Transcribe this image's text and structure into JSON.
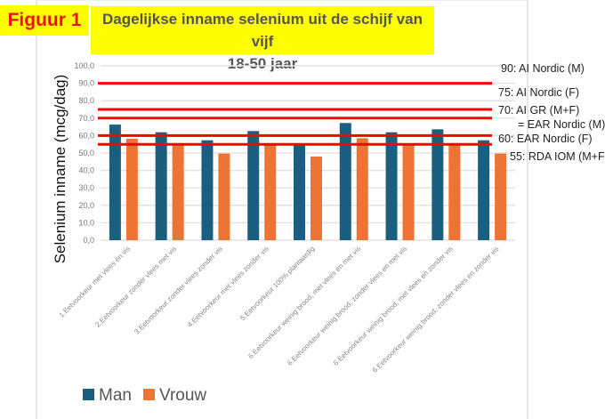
{
  "figure_label": "Figuur 1",
  "chart_data": {
    "type": "bar",
    "title": "Dagelijkse inname selenium uit de schijf van vijf",
    "subtitle": "18-50 jaar",
    "xlabel": "",
    "ylabel": "Selenium inname (mcg/dag)",
    "ylim": [
      0,
      100
    ],
    "yticks": [
      "0,0",
      "10,0",
      "20,0",
      "30,0",
      "40,0",
      "50,0",
      "60,0",
      "70,0",
      "80,0",
      "90,0",
      "100,0"
    ],
    "grid": true,
    "legend": "bottom-left",
    "categories": [
      "1.Eetvoorkeur met vlees en vis",
      "2.Eetvoorkeur zonder vlees met vis",
      "3.Eetvoorkeur zonder vlees zonder vis",
      "4.Eetvoorkeur met vlees zonder vis",
      "5.Eetvoorkeur 100% plantaardig",
      "6.Eetvoorkeur weinig brood, met vlees en met vis",
      "6.Eetvoorkeur weinig brood, zonder vlees en met vis",
      "6.Eetvoorkeur weinig brood, met vlees en zonder vis",
      "6.Eetvoorkeur weinig brood, zonder vlees en zonder vis"
    ],
    "series": [
      {
        "name": "Man",
        "color": "#1b5f80",
        "values": [
          66.3,
          61.9,
          57.3,
          62.6,
          55.0,
          67.2,
          61.9,
          63.6,
          57.3
        ]
      },
      {
        "name": "Vrouw",
        "color": "#ed7434",
        "values": [
          58.2,
          54.6,
          49.7,
          54.6,
          48.0,
          58.5,
          54.6,
          54.6,
          49.7
        ]
      }
    ],
    "reference_lines": [
      {
        "value": 90,
        "label": "90: AI Nordic (M)"
      },
      {
        "value": 75,
        "label": "75: AI Nordic (F)"
      },
      {
        "value": 70,
        "label": "70: AI GR (M+F)",
        "label2": "= EAR Nordic (M)"
      },
      {
        "value": 60,
        "label": "60: EAR Nordic (F)"
      },
      {
        "value": 55,
        "label": "55: RDA IOM (M+F)"
      }
    ],
    "reference_color": "#ff0000"
  }
}
